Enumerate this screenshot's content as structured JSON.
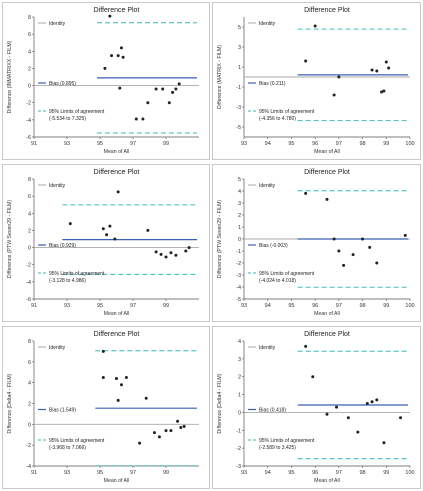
{
  "chart_data": [
    {
      "type": "scatter",
      "title": "Difference Plot",
      "xlabel": "Mean of All",
      "ylabel": "Difference (INMATRIXX - FILM)",
      "xlim": [
        91,
        101
      ],
      "ylim": [
        -6,
        8
      ],
      "xticks": [
        91,
        93,
        95,
        97,
        99
      ],
      "yticks": [
        -6,
        -4,
        -2,
        0,
        2,
        4,
        6,
        8
      ],
      "grid": false,
      "legend": {
        "position": "left",
        "identity": "Identity",
        "bias": "Bias (0.895)",
        "loa": "95% Limits of agreement",
        "loa_range": "(-5.534 to 7.325)"
      },
      "bias": 0.895,
      "loa": [
        -5.534,
        7.325
      ],
      "points": [
        [
          95.3,
          2.0
        ],
        [
          95.6,
          8.1
        ],
        [
          95.7,
          3.5
        ],
        [
          96.1,
          3.5
        ],
        [
          96.3,
          4.4
        ],
        [
          96.4,
          3.3
        ],
        [
          96.2,
          -0.3
        ],
        [
          97.2,
          -3.9
        ],
        [
          97.6,
          -3.9
        ],
        [
          97.9,
          -2.0
        ],
        [
          98.4,
          -0.4
        ],
        [
          98.8,
          -0.4
        ],
        [
          99.2,
          -2.0
        ],
        [
          99.4,
          -0.8
        ],
        [
          99.6,
          -0.4
        ],
        [
          99.8,
          0.2
        ]
      ]
    },
    {
      "type": "scatter",
      "title": "Difference Plot",
      "xlabel": "Mean of All",
      "ylabel": "Difference (MATRIX - FILM)",
      "xlim": [
        93,
        100
      ],
      "ylim": [
        -6,
        6
      ],
      "xticks": [
        93,
        94,
        95,
        96,
        97,
        98,
        99,
        100
      ],
      "yticks": [
        -5,
        -3,
        -1,
        1,
        3,
        5
      ],
      "grid": false,
      "legend": {
        "position": "left",
        "identity": "Identity",
        "bias": "Bias (0.211)",
        "loa": "95% Limits of agreement",
        "loa_range": "(-4.356 to 4.780)"
      },
      "bias": 0.211,
      "loa": [
        -4.356,
        4.78
      ],
      "points": [
        [
          95.6,
          1.6
        ],
        [
          96.0,
          5.1
        ],
        [
          96.8,
          -1.8
        ],
        [
          97.0,
          0.0
        ],
        [
          98.4,
          0.7
        ],
        [
          98.6,
          0.6
        ],
        [
          98.8,
          -1.5
        ],
        [
          98.9,
          -1.4
        ],
        [
          99.0,
          1.5
        ],
        [
          99.1,
          0.9
        ]
      ]
    },
    {
      "type": "scatter",
      "title": "Difference Plot",
      "xlabel": "Mean of All",
      "ylabel": "Difference (PTW Seven29 - FILM)",
      "xlim": [
        91,
        101
      ],
      "ylim": [
        -6,
        8
      ],
      "xticks": [
        91,
        93,
        95,
        97,
        99
      ],
      "yticks": [
        -6,
        -4,
        -2,
        0,
        2,
        4,
        6,
        8
      ],
      "grid": false,
      "legend": {
        "position": "left",
        "identity": "Identity",
        "bias": "Bias (0.929)",
        "loa": "95% Limits of agreement",
        "loa_range": "(-3.128 to 4.986)"
      },
      "bias": 0.929,
      "loa": [
        -3.128,
        4.986
      ],
      "points": [
        [
          93.2,
          2.8
        ],
        [
          95.2,
          2.2
        ],
        [
          95.4,
          1.5
        ],
        [
          95.6,
          2.5
        ],
        [
          95.9,
          1.0
        ],
        [
          96.1,
          6.5
        ],
        [
          97.9,
          2.0
        ],
        [
          98.4,
          -0.5
        ],
        [
          98.7,
          -0.8
        ],
        [
          99.0,
          -1.1
        ],
        [
          99.3,
          -0.6
        ],
        [
          99.6,
          -0.9
        ],
        [
          100.2,
          -0.4
        ],
        [
          100.4,
          0.0
        ]
      ]
    },
    {
      "type": "scatter",
      "title": "Difference Plot",
      "xlabel": "Mean of All",
      "ylabel": "Difference (PTW Seven29 - FILM)",
      "xlim": [
        93,
        100
      ],
      "ylim": [
        -5,
        5
      ],
      "xticks": [
        93,
        94,
        95,
        96,
        97,
        98,
        99,
        100
      ],
      "yticks": [
        -5,
        -4,
        -3,
        -2,
        -1,
        0,
        1,
        2,
        3,
        4,
        5
      ],
      "grid": false,
      "legend": {
        "position": "left",
        "identity": "Identity",
        "bias": "Bias (-0.003)",
        "loa": "95% Limits of agreement",
        "loa_range": "(-4.024 to 4.018)"
      },
      "bias": -0.003,
      "loa": [
        -4.024,
        4.018
      ],
      "points": [
        [
          95.6,
          3.8
        ],
        [
          96.5,
          3.3
        ],
        [
          96.8,
          0.0
        ],
        [
          97.0,
          -1.0
        ],
        [
          97.2,
          -2.2
        ],
        [
          97.6,
          -1.3
        ],
        [
          98.0,
          0.0
        ],
        [
          98.3,
          -0.7
        ],
        [
          98.6,
          -2.0
        ],
        [
          99.8,
          0.3
        ]
      ]
    },
    {
      "type": "scatter",
      "title": "Difference Plot",
      "xlabel": "Mean of All",
      "ylabel": "Difference (Delta4 - FILM)",
      "xlim": [
        91,
        101
      ],
      "ylim": [
        -4,
        8
      ],
      "xticks": [
        91,
        93,
        95,
        97,
        99
      ],
      "yticks": [
        -4,
        -2,
        0,
        2,
        4,
        6,
        8
      ],
      "grid": false,
      "legend": {
        "position": "left",
        "identity": "Identity",
        "bias": "Bias (1.549)",
        "loa": "95% Limits of agreement",
        "loa_range": "(-3.968 to 7.066)"
      },
      "bias": 1.549,
      "loa": [
        -3.968,
        7.066
      ],
      "points": [
        [
          95.2,
          7.0
        ],
        [
          95.2,
          4.5
        ],
        [
          96.0,
          4.4
        ],
        [
          96.3,
          3.8
        ],
        [
          96.6,
          4.5
        ],
        [
          96.1,
          2.3
        ],
        [
          97.4,
          -1.8
        ],
        [
          97.8,
          2.5
        ],
        [
          98.3,
          -0.8
        ],
        [
          98.6,
          -1.2
        ],
        [
          99.0,
          -0.6
        ],
        [
          99.3,
          -0.6
        ],
        [
          99.7,
          0.3
        ],
        [
          99.9,
          -0.3
        ],
        [
          100.1,
          -0.2
        ]
      ]
    },
    {
      "type": "scatter",
      "title": "Difference Plot",
      "xlabel": "Mean of All",
      "ylabel": "Difference (Delta4 - FILM)",
      "xlim": [
        93,
        100
      ],
      "ylim": [
        -3,
        4
      ],
      "xticks": [
        93,
        94,
        95,
        96,
        97,
        98,
        99,
        100
      ],
      "yticks": [
        -3,
        -2,
        -1,
        0,
        1,
        2,
        3,
        4
      ],
      "grid": false,
      "legend": {
        "position": "left",
        "identity": "Identity",
        "bias": "Bias (0.418)",
        "loa": "95% Limits of agreement",
        "loa_range": "(-2.589 to 3.425)"
      },
      "bias": 0.418,
      "loa": [
        -2.589,
        3.425
      ],
      "points": [
        [
          95.6,
          3.7
        ],
        [
          95.9,
          2.0
        ],
        [
          96.5,
          -0.1
        ],
        [
          96.9,
          0.3
        ],
        [
          97.4,
          -0.3
        ],
        [
          97.8,
          -1.1
        ],
        [
          98.2,
          0.5
        ],
        [
          98.4,
          0.6
        ],
        [
          98.6,
          0.7
        ],
        [
          98.9,
          -1.7
        ],
        [
          99.6,
          -0.3
        ]
      ]
    }
  ],
  "colors": {
    "bias_line": "#3b5fb5",
    "loa_line": "#5cc6c4",
    "identity_line": "#a9a9a9",
    "points": "#222222",
    "border": "#c9c9c9"
  }
}
